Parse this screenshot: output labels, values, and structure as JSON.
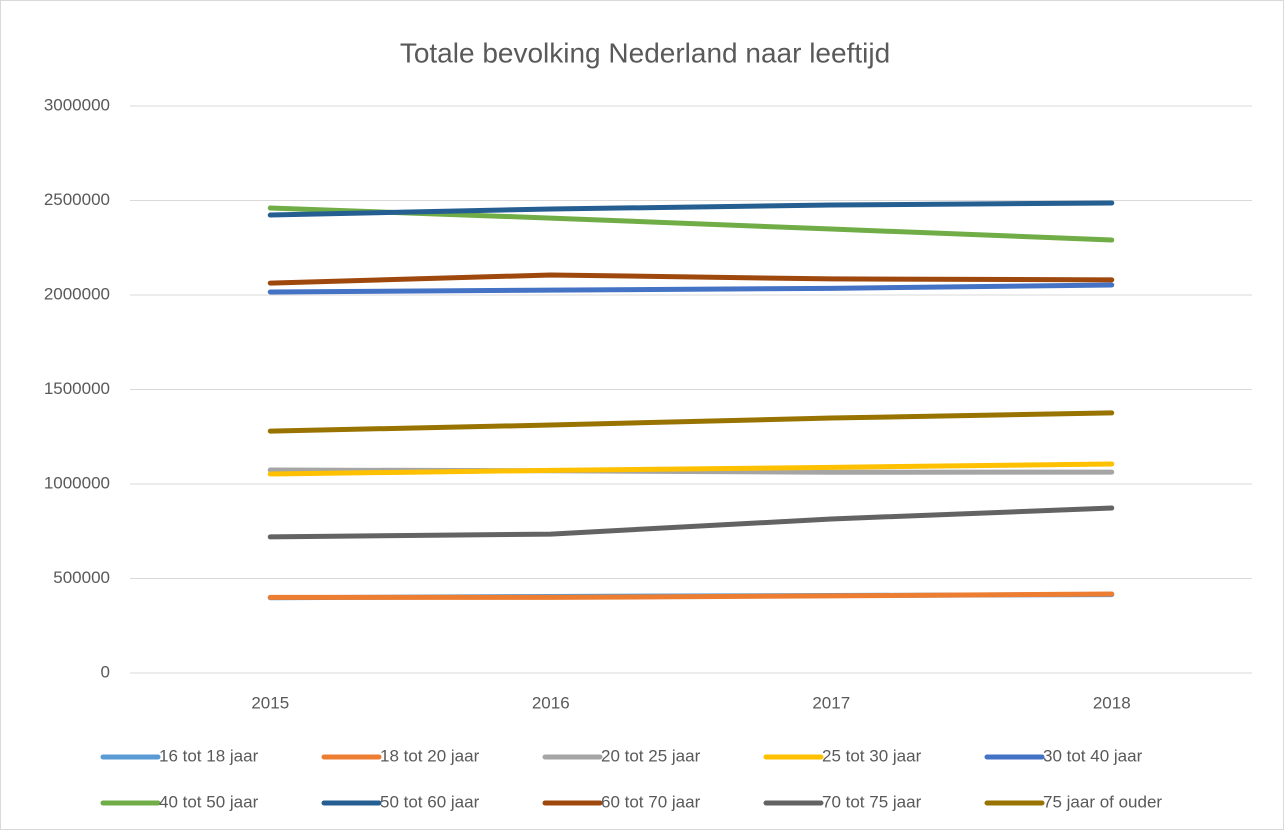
{
  "chart_data": {
    "type": "line",
    "title": "Totale bevolking Nederland naar leeftijd",
    "categories": [
      "2015",
      "2016",
      "2017",
      "2018"
    ],
    "ylim": [
      0,
      3000000
    ],
    "yticks": [
      0,
      500000,
      1000000,
      1500000,
      2000000,
      2500000,
      3000000
    ],
    "grid": true,
    "series": [
      {
        "name": "16 tot 18 jaar",
        "color": "#5b9bd5",
        "values": [
          398000,
          405000,
          410000,
          415000
        ]
      },
      {
        "name": "18 tot 20 jaar",
        "color": "#ed7d31",
        "values": [
          400000,
          400000,
          408000,
          418000
        ]
      },
      {
        "name": "20 tot 25 jaar",
        "color": "#a5a5a5",
        "values": [
          1074000,
          1070000,
          1062000,
          1063000
        ]
      },
      {
        "name": "25 tot 30 jaar",
        "color": "#ffc000",
        "values": [
          1053000,
          1072000,
          1088000,
          1106000
        ]
      },
      {
        "name": "30 tot 40 jaar",
        "color": "#4472c4",
        "values": [
          2016000,
          2026000,
          2035000,
          2053000
        ]
      },
      {
        "name": "40 tot 50 jaar",
        "color": "#70ad47",
        "values": [
          2460000,
          2407000,
          2349000,
          2291000
        ]
      },
      {
        "name": "50 tot 60 jaar",
        "color": "#255e91",
        "values": [
          2423000,
          2455000,
          2476000,
          2487000
        ]
      },
      {
        "name": "60 tot 70 jaar",
        "color": "#9e480e",
        "values": [
          2063000,
          2106000,
          2085000,
          2080000
        ]
      },
      {
        "name": "70 tot 75 jaar",
        "color": "#636363",
        "values": [
          720000,
          735000,
          815000,
          873000
        ]
      },
      {
        "name": "75 jaar of ouder",
        "color": "#997300",
        "values": [
          1280000,
          1312000,
          1349000,
          1376000
        ]
      }
    ]
  }
}
